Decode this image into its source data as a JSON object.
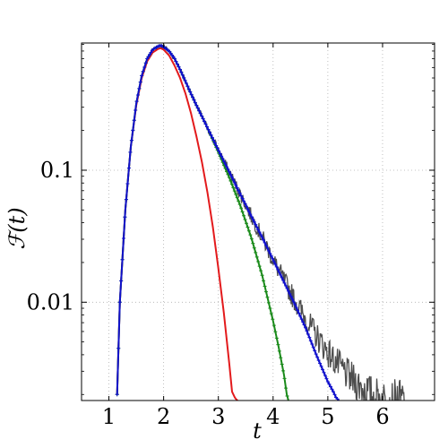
{
  "chart_data": {
    "type": "line",
    "title": "",
    "xlabel": "t",
    "ylabel": "ℱ(t)",
    "xlim": [
      0.5,
      6.95
    ],
    "ylim": [
      0.0018,
      0.92
    ],
    "yscale": "log",
    "grid": true,
    "xticks": [
      1,
      2,
      3,
      4,
      5,
      6
    ],
    "xtick_labels": [
      "1",
      "2",
      "3",
      "4",
      "5",
      "6"
    ],
    "yticks": [
      0.01,
      0.1
    ],
    "ytick_labels": [
      "0.01",
      "0.1"
    ],
    "series": [
      {
        "color": "#4d4d4d",
        "style": "noisy",
        "x": [
          1.15,
          1.2,
          1.3,
          1.4,
          1.5,
          1.6,
          1.7,
          1.8,
          1.9,
          1.95,
          2.0,
          2.1,
          2.2,
          2.3,
          2.4,
          2.5,
          2.6,
          2.8,
          3.0,
          3.2,
          3.4,
          3.6,
          3.8,
          4.0,
          4.2,
          4.4,
          4.6,
          4.8,
          5.0,
          5.2,
          5.4,
          5.6,
          5.8,
          6.0,
          6.2,
          6.4
        ],
        "y": [
          0.002,
          0.01,
          0.05,
          0.15,
          0.32,
          0.52,
          0.7,
          0.82,
          0.87,
          0.88,
          0.86,
          0.8,
          0.7,
          0.58,
          0.47,
          0.38,
          0.31,
          0.21,
          0.142,
          0.097,
          0.066,
          0.045,
          0.031,
          0.021,
          0.0145,
          0.0103,
          0.0074,
          0.0055,
          0.0042,
          0.0033,
          0.0027,
          0.0023,
          0.002,
          0.00185,
          0.0018,
          0.0018
        ]
      },
      {
        "color": "#e31a1c",
        "style": "solid",
        "x": [
          1.15,
          1.2,
          1.3,
          1.4,
          1.5,
          1.6,
          1.7,
          1.8,
          1.9,
          1.95,
          2.0,
          2.1,
          2.2,
          2.3,
          2.4,
          2.5,
          2.6,
          2.7,
          2.8,
          2.9,
          3.0,
          3.1,
          3.2,
          3.25,
          3.3,
          3.32,
          3.35
        ],
        "y": [
          0.002,
          0.01,
          0.05,
          0.15,
          0.31,
          0.5,
          0.67,
          0.78,
          0.83,
          0.84,
          0.82,
          0.74,
          0.62,
          0.5,
          0.38,
          0.27,
          0.18,
          0.115,
          0.068,
          0.037,
          0.018,
          0.0083,
          0.0034,
          0.0021,
          0.0019,
          0.00185,
          0.0018
        ]
      },
      {
        "color": "#1a8a1a",
        "style": "markers",
        "x": [
          1.15,
          1.2,
          1.3,
          1.4,
          1.5,
          1.6,
          1.7,
          1.8,
          1.9,
          1.95,
          2.0,
          2.1,
          2.2,
          2.3,
          2.4,
          2.5,
          2.6,
          2.8,
          3.0,
          3.2,
          3.4,
          3.6,
          3.8,
          4.0,
          4.1,
          4.2,
          4.25,
          4.28
        ],
        "y": [
          0.002,
          0.01,
          0.05,
          0.15,
          0.32,
          0.52,
          0.7,
          0.82,
          0.87,
          0.88,
          0.86,
          0.8,
          0.7,
          0.58,
          0.47,
          0.38,
          0.31,
          0.21,
          0.137,
          0.088,
          0.054,
          0.031,
          0.016,
          0.0072,
          0.0046,
          0.0028,
          0.002,
          0.0018
        ]
      },
      {
        "color": "#1010cc",
        "style": "markers",
        "x": [
          1.15,
          1.2,
          1.3,
          1.4,
          1.5,
          1.6,
          1.7,
          1.8,
          1.9,
          1.95,
          2.0,
          2.1,
          2.2,
          2.3,
          2.4,
          2.5,
          2.6,
          2.8,
          3.0,
          3.2,
          3.4,
          3.6,
          3.8,
          4.0,
          4.2,
          4.4,
          4.6,
          4.8,
          5.0,
          5.1,
          5.15,
          5.2
        ],
        "y": [
          0.002,
          0.01,
          0.05,
          0.15,
          0.32,
          0.52,
          0.7,
          0.82,
          0.87,
          0.88,
          0.86,
          0.8,
          0.7,
          0.58,
          0.47,
          0.38,
          0.31,
          0.21,
          0.142,
          0.097,
          0.066,
          0.045,
          0.031,
          0.021,
          0.0142,
          0.0096,
          0.0063,
          0.0039,
          0.0025,
          0.0021,
          0.0019,
          0.0018
        ]
      }
    ]
  }
}
